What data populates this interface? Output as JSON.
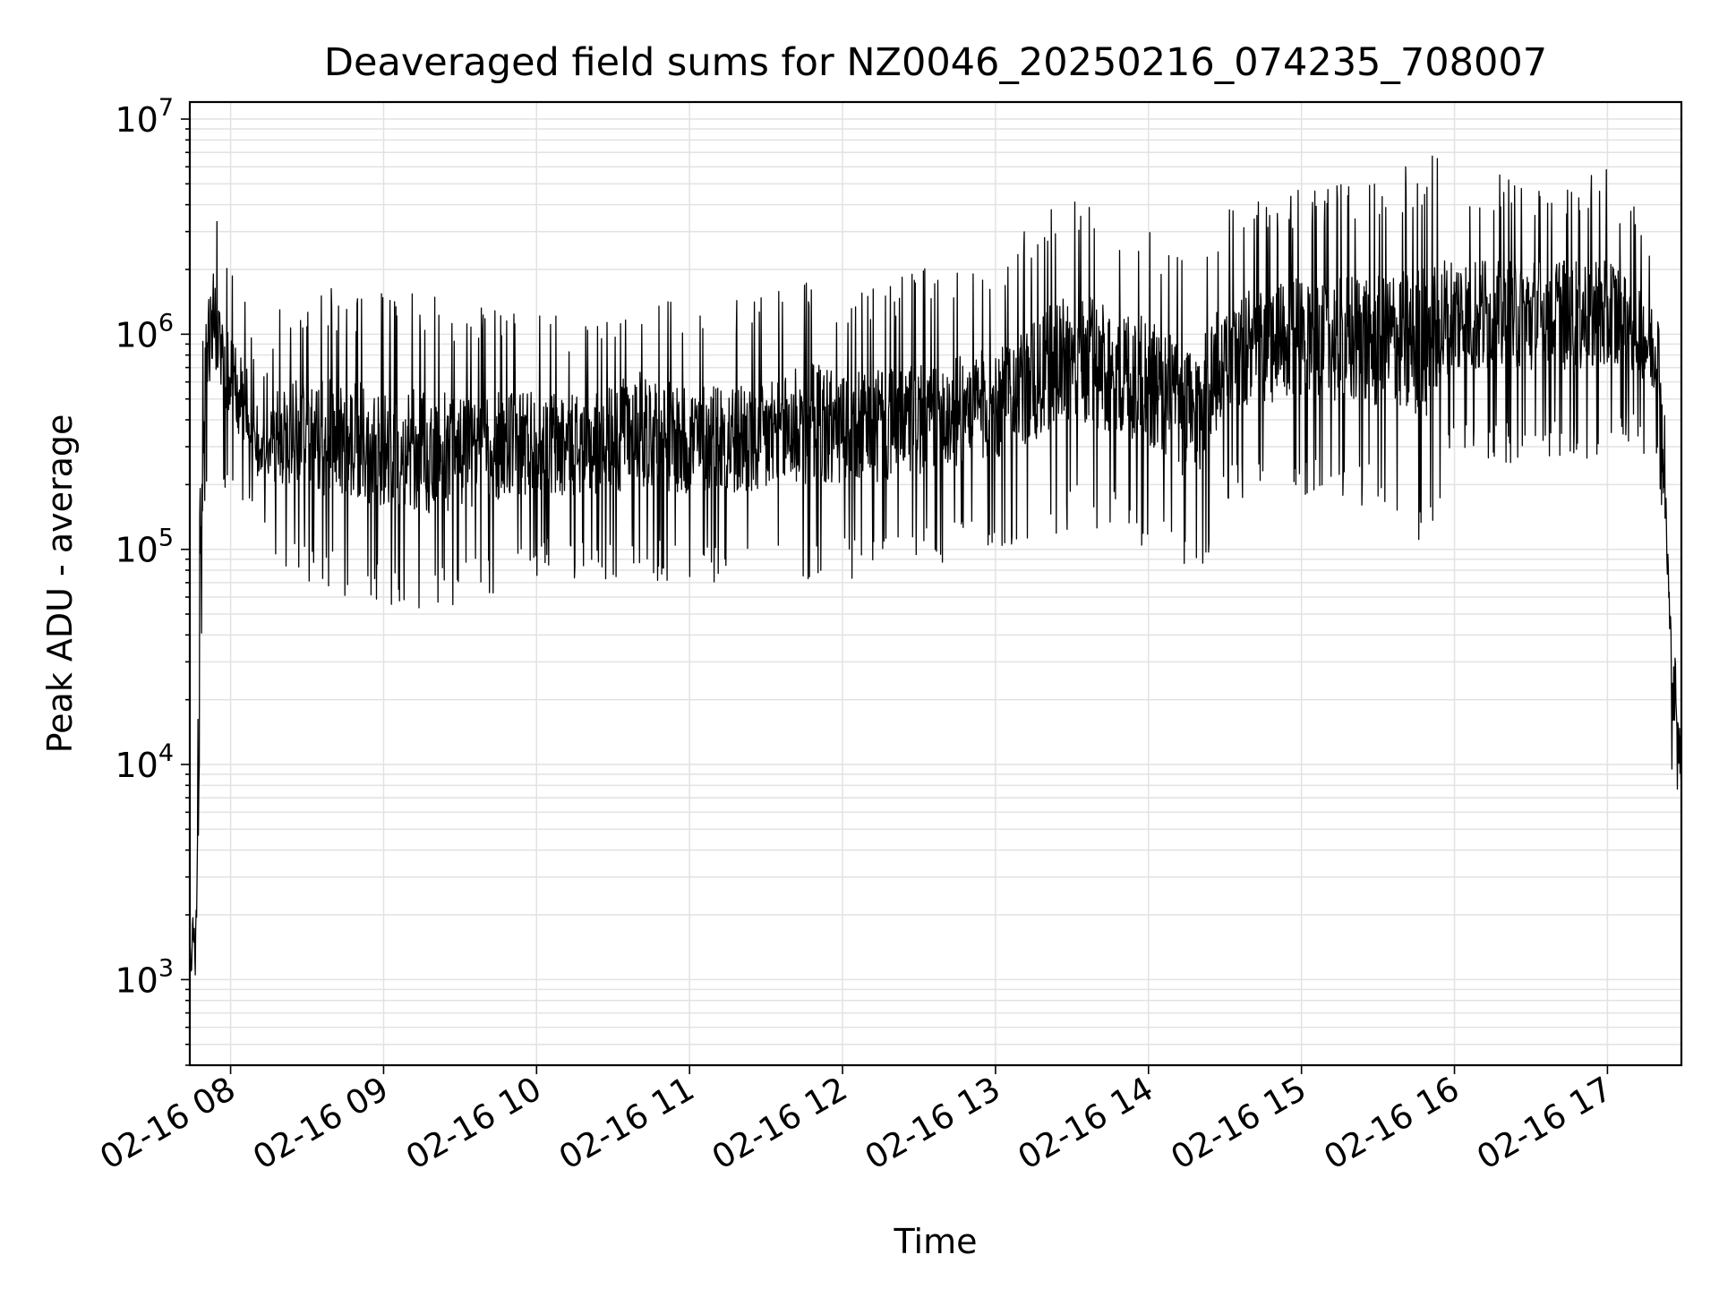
{
  "chart_data": {
    "type": "line",
    "title": "Deaveraged field sums for NZ0046_20250216_074235_708007",
    "xlabel": "Time",
    "ylabel": "Peak ADU - average",
    "x_ticks": [
      "02-16 08",
      "02-16 09",
      "02-16 10",
      "02-16 11",
      "02-16 12",
      "02-16 13",
      "02-16 14",
      "02-16 15",
      "02-16 16",
      "02-16 17"
    ],
    "y_ticks": [
      {
        "value": 1000,
        "mantissa": "10",
        "exponent": "3"
      },
      {
        "value": 10000,
        "mantissa": "10",
        "exponent": "4"
      },
      {
        "value": 100000,
        "mantissa": "10",
        "exponent": "5"
      },
      {
        "value": 1000000,
        "mantissa": "10",
        "exponent": "6"
      },
      {
        "value": 10000000,
        "mantissa": "10",
        "exponent": "7"
      }
    ],
    "xlim": [
      "2025-02-16 07:44",
      "2025-02-16 17:29"
    ],
    "ylim": [
      400,
      12000000
    ],
    "yscale": "log",
    "grid": true,
    "line_color": "#000000",
    "grid_color": "#e2e2e2",
    "series": [
      {
        "name": "",
        "note_values": "approximate envelope of a dense, noisy trace: [time, lower ADU, upper ADU]",
        "envelope": [
          [
            "2025-02-16 07:44",
            800,
            1400
          ],
          [
            "2025-02-16 07:46",
            900,
            2500
          ],
          [
            "2025-02-16 07:47",
            1000,
            12000
          ],
          [
            "2025-02-16 07:48",
            3000,
            300000
          ],
          [
            "2025-02-16 07:50",
            180000,
            2200000
          ],
          [
            "2025-02-16 07:53",
            300000,
            5000000
          ],
          [
            "2025-02-16 07:57",
            200000,
            2800000
          ],
          [
            "2025-02-16 08:02",
            160000,
            1800000
          ],
          [
            "2025-02-16 08:08",
            160000,
            1200000
          ],
          [
            "2025-02-16 08:10",
            150000,
            500000
          ],
          [
            "2025-02-16 08:20",
            80000,
            1500000
          ],
          [
            "2025-02-16 08:40",
            60000,
            1700000
          ],
          [
            "2025-02-16 09:00",
            55000,
            1600000
          ],
          [
            "2025-02-16 09:20",
            50000,
            1500000
          ],
          [
            "2025-02-16 09:40",
            60000,
            1400000
          ],
          [
            "2025-02-16 10:00",
            75000,
            1300000
          ],
          [
            "2025-02-16 10:20",
            70000,
            1200000
          ],
          [
            "2025-02-16 10:40",
            70000,
            1800000
          ],
          [
            "2025-02-16 11:00",
            70000,
            1400000
          ],
          [
            "2025-02-16 11:30",
            70000,
            1500000
          ],
          [
            "2025-02-16 11:45",
            65000,
            2300000
          ],
          [
            "2025-02-16 12:00",
            70000,
            1700000
          ],
          [
            "2025-02-16 12:30",
            80000,
            2000000
          ],
          [
            "2025-02-16 13:00",
            100000,
            2200000
          ],
          [
            "2025-02-16 13:30",
            120000,
            5000000
          ],
          [
            "2025-02-16 14:00",
            100000,
            3500000
          ],
          [
            "2025-02-16 14:18",
            60000,
            2500000
          ],
          [
            "2025-02-16 14:30",
            150000,
            4000000
          ],
          [
            "2025-02-16 15:00",
            180000,
            5000000
          ],
          [
            "2025-02-16 15:30",
            150000,
            5500000
          ],
          [
            "2025-02-16 15:48",
            100000,
            7500000
          ],
          [
            "2025-02-16 16:00",
            250000,
            6000000
          ],
          [
            "2025-02-16 16:30",
            250000,
            5500000
          ],
          [
            "2025-02-16 17:00",
            250000,
            6000000
          ],
          [
            "2025-02-16 17:10",
            300000,
            4000000
          ],
          [
            "2025-02-16 17:20",
            250000,
            2500000
          ],
          [
            "2025-02-16 17:23",
            60000,
            300000
          ],
          [
            "2025-02-16 17:25",
            10000,
            80000
          ],
          [
            "2025-02-16 17:27",
            7000,
            30000
          ],
          [
            "2025-02-16 17:29",
            5000,
            20000
          ]
        ]
      }
    ]
  }
}
